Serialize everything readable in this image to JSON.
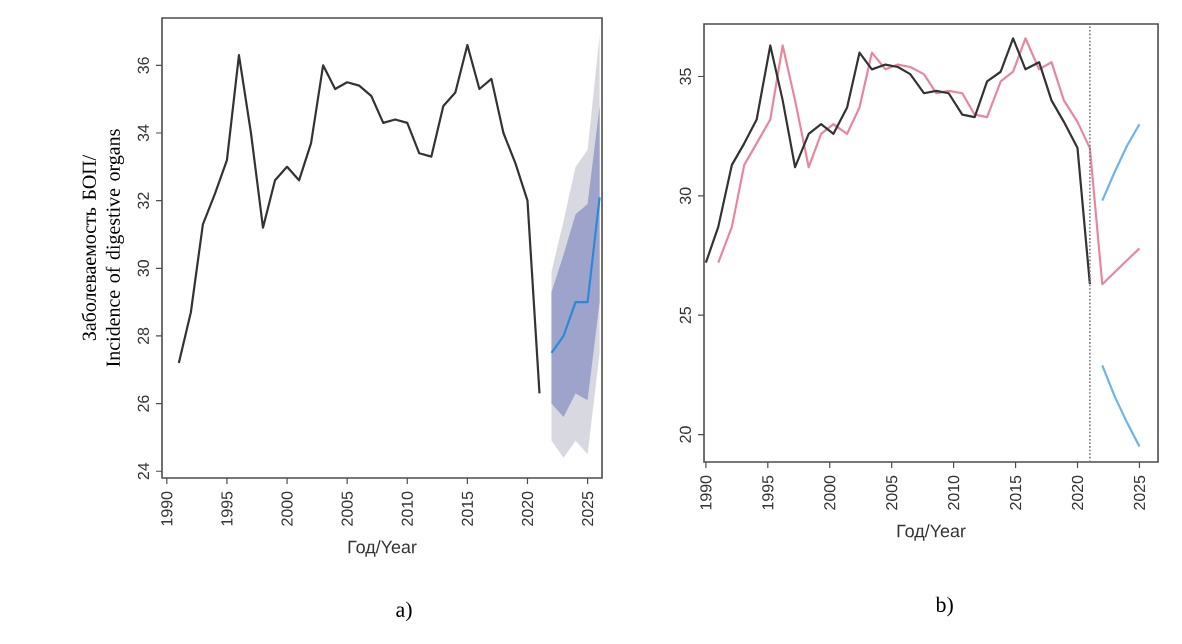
{
  "chart_data": [
    {
      "type": "line",
      "xlabel": "Год/Year",
      "ylabel": "Заболеваемость  БОП/ Incidence of digestive organs",
      "annotations": [
        "a)"
      ],
      "xlim": [
        1989.6,
        2026.2
      ],
      "ylim": [
        23.8,
        37.4
      ],
      "xticks": [
        1990,
        1995,
        2000,
        2005,
        2010,
        2015,
        2020,
        2025
      ],
      "yticks": [
        24,
        26,
        28,
        30,
        32,
        34,
        36
      ],
      "series": [
        {
          "color": "#333333",
          "x": [
            1991,
            1992,
            1993,
            1994,
            1995,
            1996,
            1997,
            1998,
            1999,
            2000,
            2001,
            2002,
            2003,
            2004,
            2005,
            2006,
            2007,
            2008,
            2009,
            2010,
            2011,
            2012,
            2013,
            2014,
            2015,
            2016,
            2017,
            2018,
            2019,
            2020,
            2021
          ],
          "values": [
            27.2,
            28.7,
            31.3,
            32.2,
            33.2,
            36.3,
            34.0,
            31.2,
            32.6,
            33.0,
            32.6,
            33.7,
            36.0,
            35.3,
            35.5,
            35.4,
            35.1,
            34.3,
            34.4,
            34.3,
            33.4,
            33.3,
            34.8,
            35.2,
            36.6,
            35.3,
            35.6,
            34.0,
            33.1,
            32.0,
            26.3
          ]
        },
        {
          "color": "#d8d8e0",
          "x": [
            2022,
            2023,
            2024,
            2025,
            2026
          ],
          "values": [
            null,
            null,
            null,
            null,
            null
          ],
          "lower": [
            24.9,
            24.4,
            24.9,
            24.5,
            27.5
          ],
          "upper": [
            29.9,
            31.4,
            33.0,
            33.5,
            36.9
          ]
        },
        {
          "color": "#9ea3cb",
          "x": [
            2022,
            2023,
            2024,
            2025,
            2026
          ],
          "values": [
            null,
            null,
            null,
            null,
            null
          ],
          "lower": [
            26.0,
            25.6,
            26.3,
            26.1,
            29.0
          ],
          "upper": [
            29.3,
            30.4,
            31.6,
            31.9,
            34.8
          ]
        },
        {
          "color": "#2b8ad8",
          "x": [
            2022,
            2023,
            2024,
            2025,
            2026
          ],
          "values": [
            27.5,
            28.0,
            29.0,
            29.0,
            32.1
          ]
        }
      ]
    },
    {
      "type": "line",
      "xlabel": "Год/Year",
      "annotations": [
        "b)"
      ],
      "xlim": [
        1989.85,
        2026.5
      ],
      "ylim": [
        18.85,
        37.2
      ],
      "xticks": [
        1990,
        1995,
        2000,
        2005,
        2010,
        2015,
        2020,
        2025
      ],
      "yticks": [
        20,
        25,
        30,
        35
      ],
      "ref_lines": [
        {
          "axis": "x",
          "value": 2021,
          "color": "#777777",
          "line_style": "dotted"
        }
      ],
      "series": [
        {
          "color": "#e8879c",
          "x": [
            1991,
            1992.1,
            1993.1,
            1994.1,
            1995.2,
            1996.2,
            1997.2,
            1998.3,
            1999.3,
            2000.3,
            2001.4,
            2002.4,
            2003.4,
            2004.5,
            2005.5,
            2006.5,
            2007.6,
            2008.6,
            2009.6,
            2010.7,
            2011.7,
            2012.7,
            2013.8,
            2014.8,
            2015.8,
            2016.9,
            2017.9,
            2018.9,
            2020,
            2021,
            2022,
            2023,
            2024,
            2025
          ],
          "values": [
            27.2,
            28.7,
            31.3,
            32.2,
            33.2,
            36.3,
            34.0,
            31.2,
            32.6,
            33.0,
            32.6,
            33.7,
            36.0,
            35.3,
            35.5,
            35.4,
            35.1,
            34.3,
            34.4,
            34.3,
            33.4,
            33.3,
            34.8,
            35.2,
            36.6,
            35.3,
            35.6,
            34.0,
            33.1,
            32.0,
            26.3,
            26.8,
            27.3,
            27.8
          ]
        },
        {
          "color": "#333333",
          "x": [
            1990,
            1991,
            1992.1,
            1993.1,
            1994.1,
            1995.2,
            1996.2,
            1997.2,
            1998.3,
            1999.3,
            2000.3,
            2001.4,
            2002.4,
            2003.4,
            2004.5,
            2005.5,
            2006.5,
            2007.6,
            2008.6,
            2009.6,
            2010.7,
            2011.7,
            2012.7,
            2013.8,
            2014.8,
            2015.8,
            2016.9,
            2017.9,
            2018.9,
            2020,
            2021
          ],
          "values": [
            27.2,
            28.7,
            31.3,
            32.2,
            33.2,
            36.3,
            34.0,
            31.2,
            32.6,
            33.0,
            32.6,
            33.7,
            36.0,
            35.3,
            35.5,
            35.4,
            35.1,
            34.3,
            34.4,
            34.3,
            33.4,
            33.3,
            34.8,
            35.2,
            36.6,
            35.3,
            35.6,
            34.0,
            33.1,
            32.0,
            26.3
          ]
        },
        {
          "color": "#6cb4ea",
          "x": [
            2022,
            2023,
            2024,
            2025
          ],
          "values": [
            29.8,
            31.0,
            32.1,
            33.0
          ]
        },
        {
          "color": "#6cb4ea",
          "x": [
            2022,
            2023,
            2024,
            2025
          ],
          "values": [
            22.9,
            21.6,
            20.5,
            19.5
          ]
        }
      ]
    }
  ]
}
